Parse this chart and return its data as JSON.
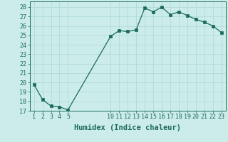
{
  "x": [
    1,
    2,
    3,
    4,
    5,
    10,
    11,
    12,
    13,
    14,
    15,
    16,
    17,
    18,
    19,
    20,
    21,
    22,
    23
  ],
  "y": [
    19.8,
    18.2,
    17.5,
    17.4,
    17.1,
    24.9,
    25.5,
    25.4,
    25.6,
    27.9,
    27.5,
    28.0,
    27.2,
    27.5,
    27.1,
    26.7,
    26.4,
    26.0,
    25.3
  ],
  "line_color": "#1a6b5a",
  "bg_color": "#ccecea",
  "grid_color": "#aad8d4",
  "xlabel": "Humidex (Indice chaleur)",
  "ylim_min": 17,
  "ylim_max": 28.6,
  "yticks": [
    17,
    18,
    19,
    20,
    21,
    22,
    23,
    24,
    25,
    26,
    27,
    28
  ],
  "xticks": [
    1,
    2,
    3,
    4,
    5,
    10,
    11,
    12,
    13,
    14,
    15,
    16,
    17,
    18,
    19,
    20,
    21,
    22,
    23
  ],
  "tick_color": "#1a6b5a",
  "xlabel_fontsize": 7.5,
  "tick_fontsize": 6.0
}
